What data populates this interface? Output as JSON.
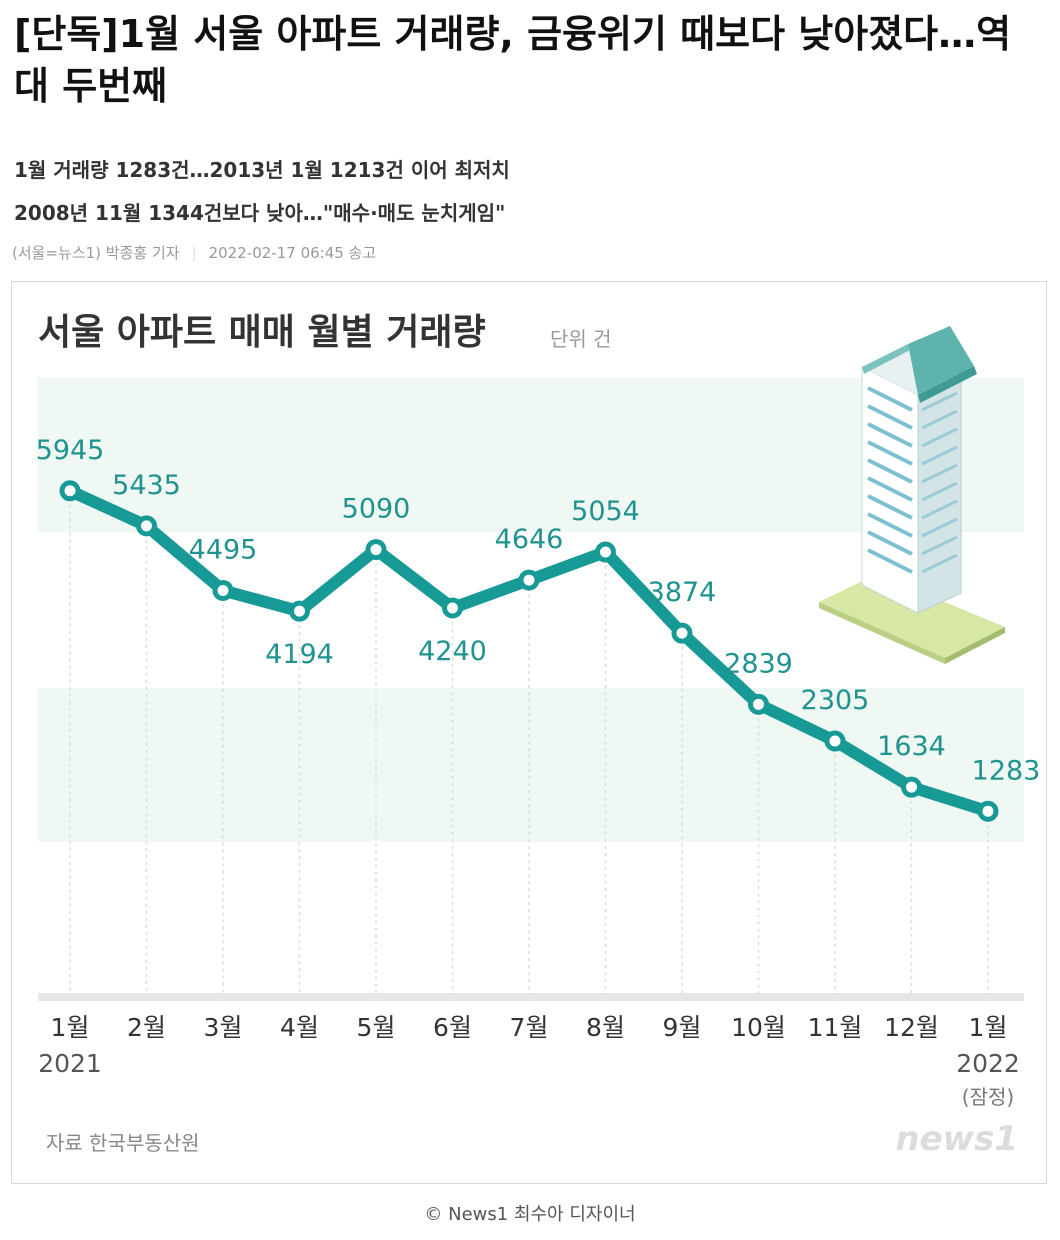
{
  "article": {
    "headline": "[단독]1월 서울 아파트 거래량, 금융위기 때보다 낮아졌다…역대 두번째",
    "subheads": [
      "1월 거래량 1283건…2013년 1월 1213건 이어 최저치",
      "2008년 11월 1344건보다 낮아…\"매수·매도 눈치게임\""
    ],
    "byline": "(서울=뉴스1) 박종홍 기자",
    "timestamp": "2022-02-17 06:45 송고",
    "caption": "© News1 최수아 디자이너"
  },
  "chart_data": {
    "type": "line",
    "title": "서울 아파트 매매 월별 거래량",
    "unit": "단위 건",
    "categories": [
      "1월",
      "2월",
      "3월",
      "4월",
      "5월",
      "6월",
      "7월",
      "8월",
      "9월",
      "10월",
      "11월",
      "12월",
      "1월"
    ],
    "category_sublabels": [
      "2021",
      "",
      "",
      "",
      "",
      "",
      "",
      "",
      "",
      "",
      "",
      "",
      "2022"
    ],
    "category_note": "(잠정)",
    "values": [
      5945,
      5435,
      4495,
      4194,
      5090,
      4240,
      4646,
      5054,
      3874,
      2839,
      2305,
      1634,
      1283
    ],
    "data_labels": [
      "5945",
      "5435",
      "4495",
      "4194",
      "5090",
      "4240",
      "4646",
      "5054",
      "3874",
      "2839",
      "2305",
      "1634",
      "1283"
    ],
    "source": "자료 한국부동산원",
    "logo_text": "news1",
    "grid": false,
    "colors": {
      "line": "#179a96",
      "label": "#1f938f",
      "band": "#f0f8f3",
      "axis": "#e6e6e6",
      "title": "#333333",
      "muted": "#999999"
    }
  }
}
